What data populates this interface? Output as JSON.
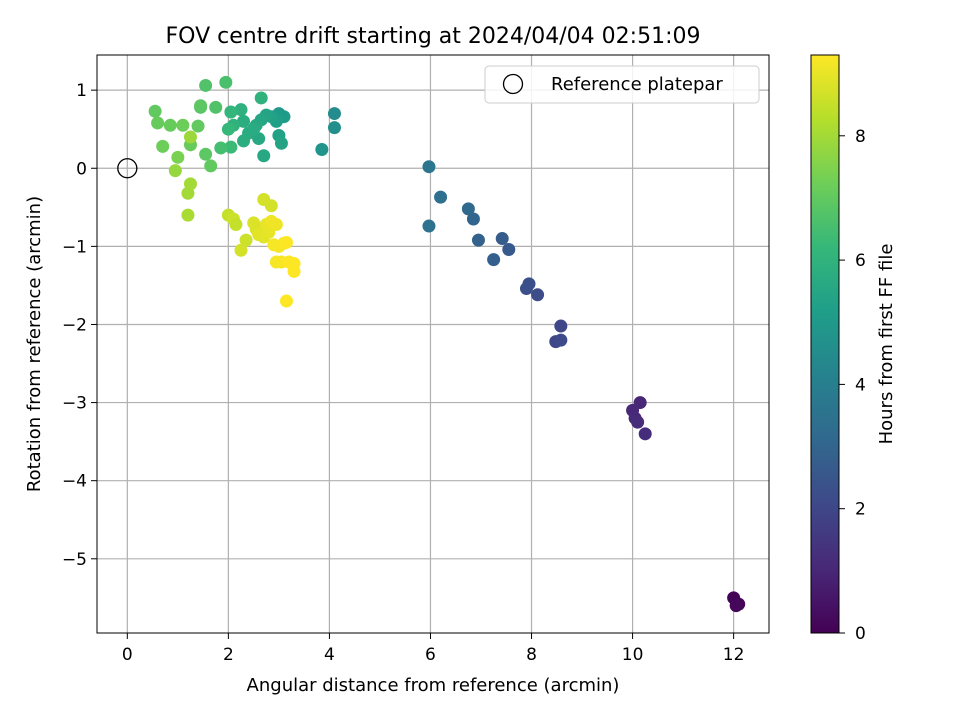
{
  "chart_data": {
    "type": "scatter",
    "title": "FOV centre drift starting at 2024/04/04 02:51:09",
    "xlabel": "Angular distance from reference (arcmin)",
    "ylabel": "Rotation from reference (arcmin)",
    "xlim": [
      -0.6,
      12.7
    ],
    "ylim": [
      -5.95,
      1.45
    ],
    "xticks": [
      0,
      2,
      4,
      6,
      8,
      10,
      12
    ],
    "yticks": [
      1,
      0,
      -1,
      -2,
      -3,
      -4,
      -5
    ],
    "grid": true,
    "legend": {
      "position": "top-right",
      "entries": [
        "Reference platepar"
      ]
    },
    "reference_point": {
      "x": 0,
      "y": 0
    },
    "colorbar": {
      "label": "Hours from first FF file",
      "min": 0,
      "max": 9.3,
      "ticks": [
        0,
        2,
        4,
        6,
        8
      ],
      "colormap": "viridis"
    },
    "points": [
      [
        12.0,
        -5.5,
        0.05
      ],
      [
        12.1,
        -5.58,
        0.1
      ],
      [
        12.05,
        -5.6,
        0.15
      ],
      [
        10.15,
        -3.0,
        1.0
      ],
      [
        10.0,
        -3.1,
        1.05
      ],
      [
        10.05,
        -3.2,
        1.1
      ],
      [
        10.1,
        -3.25,
        1.15
      ],
      [
        10.25,
        -3.4,
        1.2
      ],
      [
        8.58,
        -2.02,
        2.0
      ],
      [
        8.48,
        -2.22,
        2.05
      ],
      [
        8.58,
        -2.2,
        2.1
      ],
      [
        8.12,
        -1.62,
        2.2
      ],
      [
        7.9,
        -1.54,
        2.25
      ],
      [
        7.95,
        -1.48,
        2.3
      ],
      [
        7.55,
        -1.04,
        2.6
      ],
      [
        7.42,
        -0.9,
        2.7
      ],
      [
        7.25,
        -1.17,
        2.8
      ],
      [
        6.95,
        -0.92,
        2.9
      ],
      [
        6.85,
        -0.65,
        3.0
      ],
      [
        6.75,
        -0.52,
        3.1
      ],
      [
        6.2,
        -0.37,
        3.4
      ],
      [
        5.97,
        -0.74,
        3.5
      ],
      [
        5.97,
        0.02,
        3.6
      ],
      [
        4.1,
        0.7,
        4.5
      ],
      [
        4.1,
        0.52,
        4.6
      ],
      [
        3.85,
        0.24,
        4.8
      ],
      [
        3.0,
        0.7,
        5.0
      ],
      [
        3.1,
        0.66,
        5.1
      ],
      [
        2.95,
        0.6,
        5.2
      ],
      [
        2.85,
        0.66,
        5.3
      ],
      [
        2.75,
        0.68,
        5.4
      ],
      [
        2.65,
        0.62,
        5.5
      ],
      [
        3.0,
        0.42,
        5.3
      ],
      [
        3.05,
        0.32,
        5.4
      ],
      [
        2.55,
        0.55,
        5.6
      ],
      [
        2.4,
        0.45,
        5.7
      ],
      [
        2.6,
        0.38,
        5.6
      ],
      [
        2.3,
        0.35,
        5.8
      ],
      [
        2.7,
        0.16,
        5.6
      ],
      [
        2.3,
        0.6,
        5.8
      ],
      [
        2.25,
        0.75,
        5.9
      ],
      [
        2.05,
        0.72,
        6.1
      ],
      [
        2.65,
        0.9,
        6.0
      ],
      [
        2.5,
        0.5,
        5.7
      ],
      [
        2.1,
        0.55,
        6.0
      ],
      [
        2.0,
        0.5,
        6.2
      ],
      [
        2.05,
        0.27,
        6.3
      ],
      [
        1.95,
        1.1,
        6.6
      ],
      [
        1.55,
        1.06,
        6.7
      ],
      [
        1.75,
        0.78,
        6.7
      ],
      [
        1.45,
        0.78,
        6.8
      ],
      [
        1.45,
        0.8,
        6.9
      ],
      [
        1.4,
        0.54,
        7.0
      ],
      [
        1.85,
        0.26,
        6.5
      ],
      [
        1.55,
        0.18,
        6.9
      ],
      [
        1.65,
        0.03,
        7.0
      ],
      [
        1.25,
        0.3,
        7.1
      ],
      [
        1.1,
        0.55,
        7.2
      ],
      [
        1.0,
        0.14,
        7.4
      ],
      [
        0.85,
        0.55,
        7.1
      ],
      [
        0.6,
        0.58,
        7.1
      ],
      [
        0.55,
        0.73,
        7.0
      ],
      [
        0.7,
        0.28,
        7.2
      ],
      [
        0.95,
        -0.03,
        7.8
      ],
      [
        1.25,
        0.4,
        7.9
      ],
      [
        1.2,
        -0.32,
        8.0
      ],
      [
        1.25,
        -0.2,
        8.0
      ],
      [
        1.2,
        -0.6,
        8.1
      ],
      [
        2.0,
        -0.6,
        8.5
      ],
      [
        2.1,
        -0.65,
        8.6
      ],
      [
        2.15,
        -0.72,
        8.5
      ],
      [
        2.35,
        -0.92,
        8.6
      ],
      [
        2.25,
        -1.05,
        8.7
      ],
      [
        2.5,
        -0.7,
        8.8
      ],
      [
        2.55,
        -0.78,
        8.8
      ],
      [
        2.6,
        -0.85,
        8.9
      ],
      [
        2.7,
        -0.88,
        8.9
      ],
      [
        2.8,
        -0.82,
        9.0
      ],
      [
        2.85,
        -0.48,
        8.7
      ],
      [
        2.7,
        -0.4,
        8.7
      ],
      [
        2.75,
        -0.72,
        9.0
      ],
      [
        2.85,
        -0.68,
        9.1
      ],
      [
        2.95,
        -0.72,
        9.1
      ],
      [
        2.9,
        -0.98,
        9.2
      ],
      [
        3.0,
        -1.0,
        9.2
      ],
      [
        3.1,
        -0.96,
        9.2
      ],
      [
        3.15,
        -0.95,
        9.3
      ],
      [
        2.95,
        -1.2,
        9.2
      ],
      [
        3.05,
        -1.2,
        9.2
      ],
      [
        3.2,
        -1.2,
        9.3
      ],
      [
        3.3,
        -1.22,
        9.3
      ],
      [
        3.3,
        -1.32,
        9.3
      ],
      [
        3.15,
        -1.7,
        9.3
      ]
    ]
  }
}
